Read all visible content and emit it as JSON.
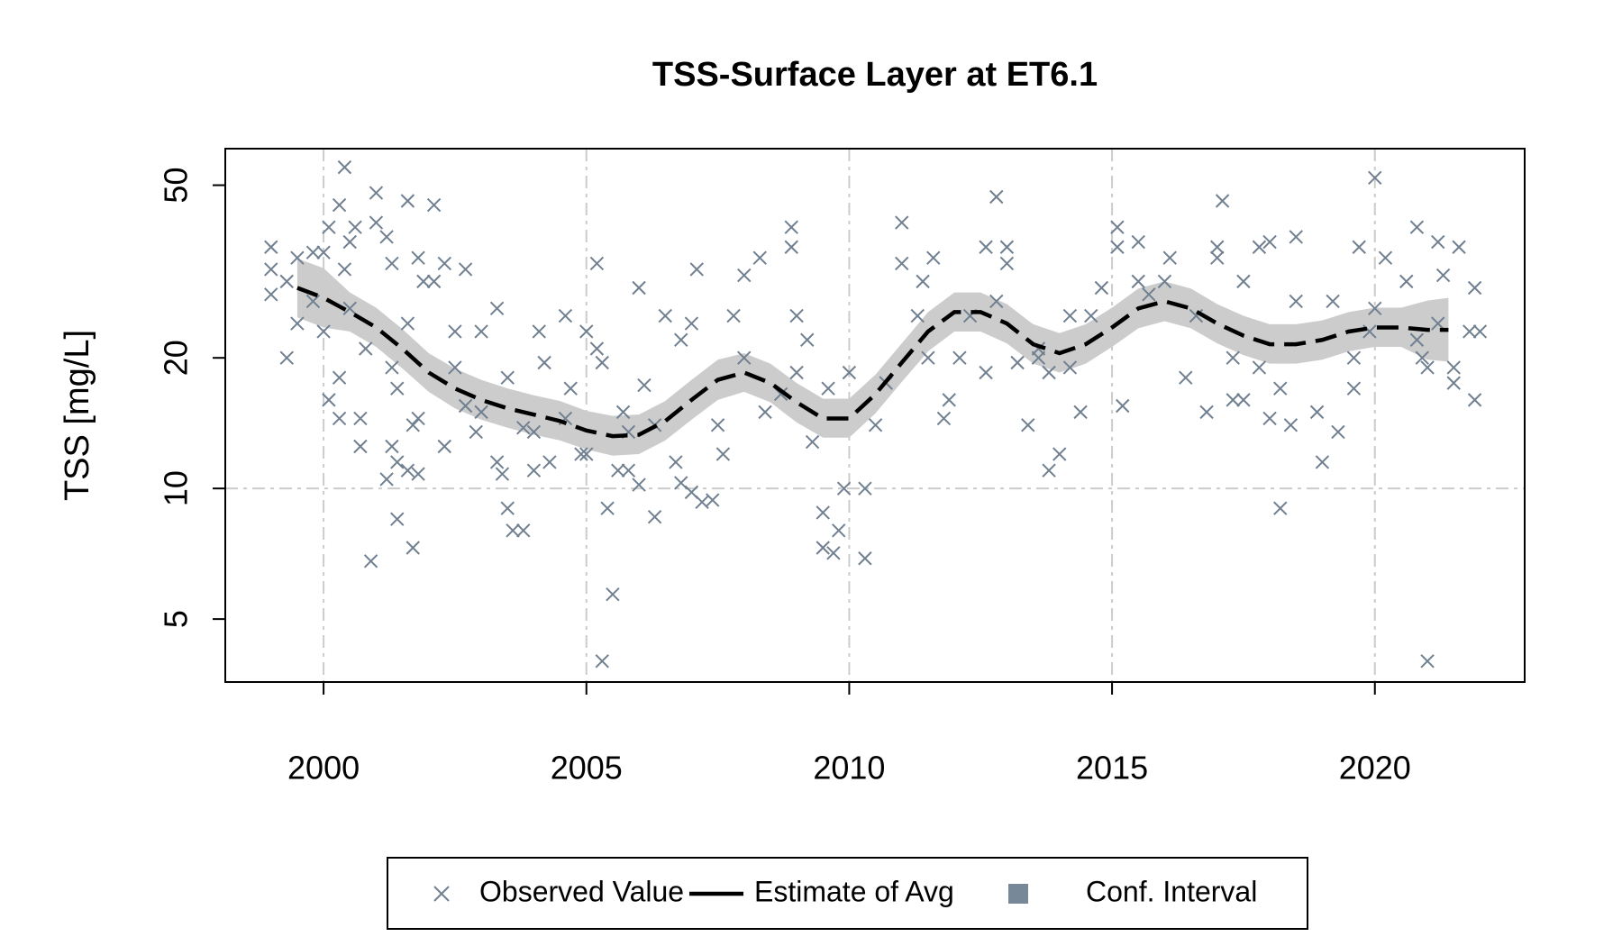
{
  "chart_data": {
    "type": "scatter",
    "title": "TSS-Surface Layer at ET6.1",
    "y_label": "TSS [mg/L]",
    "xlim": [
      1998.13,
      2022.85
    ],
    "ylim": [
      3.58,
      60.7
    ],
    "xticks": [
      2000,
      2005,
      2010,
      2015,
      2020
    ],
    "yticks": [
      5,
      10,
      20,
      50
    ],
    "y_log": true,
    "grid_x": true,
    "grid_y": [
      10
    ],
    "legend_position": "bottom",
    "series": [
      {
        "name": "Observed Value",
        "type": "scatter",
        "color": "#708090",
        "x": [
          1999.0,
          1999.0,
          1999.0,
          1999.3,
          1999.3,
          1999.5,
          1999.5,
          1999.8,
          1999.8,
          2000.0,
          2000.0,
          2000.1,
          2000.1,
          2000.3,
          2000.3,
          2000.3,
          2000.4,
          2000.4,
          2000.5,
          2000.5,
          2000.6,
          2000.7,
          2000.7,
          2000.8,
          2000.9,
          2001.0,
          2001.0,
          2001.2,
          2001.2,
          2001.3,
          2001.3,
          2001.3,
          2001.4,
          2001.4,
          2001.4,
          2001.6,
          2001.6,
          2001.6,
          2001.7,
          2001.7,
          2001.8,
          2001.8,
          2001.8,
          2001.9,
          2002.1,
          2002.1,
          2002.3,
          2002.3,
          2002.5,
          2002.5,
          2002.7,
          2002.7,
          2002.9,
          2003.0,
          2003.0,
          2003.3,
          2003.3,
          2003.4,
          2003.5,
          2003.5,
          2003.6,
          2003.8,
          2003.8,
          2004.0,
          2004.0,
          2004.1,
          2004.2,
          2004.3,
          2004.6,
          2004.6,
          2004.7,
          2004.9,
          2005.0,
          2005.0,
          2005.2,
          2005.2,
          2005.3,
          2005.3,
          2005.4,
          2005.5,
          2005.6,
          2005.7,
          2005.8,
          2005.8,
          2006.0,
          2006.0,
          2006.1,
          2006.3,
          2006.3,
          2006.5,
          2006.7,
          2006.8,
          2006.8,
          2007.0,
          2007.0,
          2007.1,
          2007.2,
          2007.4,
          2007.5,
          2007.6,
          2007.8,
          2008.0,
          2008.0,
          2008.3,
          2008.4,
          2008.7,
          2008.9,
          2008.9,
          2009.0,
          2009.0,
          2009.2,
          2009.3,
          2009.5,
          2009.5,
          2009.6,
          2009.7,
          2009.8,
          2009.9,
          2010.0,
          2010.3,
          2010.3,
          2010.5,
          2010.7,
          2011.0,
          2011.0,
          2011.3,
          2011.4,
          2011.5,
          2011.6,
          2011.8,
          2011.9,
          2012.1,
          2012.3,
          2012.6,
          2012.6,
          2012.8,
          2012.8,
          2013.0,
          2013.0,
          2013.2,
          2013.4,
          2013.6,
          2013.6,
          2013.8,
          2013.8,
          2014.0,
          2014.2,
          2014.2,
          2014.4,
          2014.6,
          2014.8,
          2015.1,
          2015.1,
          2015.2,
          2015.5,
          2015.5,
          2015.7,
          2016.0,
          2016.1,
          2016.4,
          2016.6,
          2016.8,
          2017.0,
          2017.0,
          2017.1,
          2017.3,
          2017.3,
          2017.5,
          2017.5,
          2017.8,
          2017.8,
          2018.0,
          2018.0,
          2018.2,
          2018.2,
          2018.4,
          2018.5,
          2018.5,
          2018.9,
          2019.0,
          2019.2,
          2019.3,
          2019.6,
          2019.6,
          2019.7,
          2019.9,
          2020.0,
          2020.0,
          2020.2,
          2020.6,
          2020.8,
          2020.8,
          2020.9,
          2021.0,
          2021.0,
          2021.2,
          2021.2,
          2021.3,
          2021.5,
          2021.5,
          2021.6,
          2021.8,
          2021.9,
          2021.9,
          2022.0
        ],
        "values": [
          36,
          28,
          32,
          20,
          30,
          24,
          34,
          27,
          35,
          23,
          35,
          40,
          16,
          45,
          18,
          14.5,
          55,
          32,
          37,
          26,
          40,
          12.5,
          14.5,
          21,
          6.8,
          48,
          41,
          38,
          10.5,
          33,
          19,
          12.5,
          17,
          8.5,
          11.5,
          46,
          24,
          11,
          14,
          7.3,
          14.5,
          34,
          10.8,
          30,
          45,
          30,
          33,
          12.5,
          19,
          23,
          15.5,
          32,
          13.5,
          23,
          15,
          11.5,
          26,
          10.8,
          18,
          9,
          8,
          13.8,
          8,
          11,
          13.5,
          23,
          19.5,
          11.5,
          25,
          14.5,
          17,
          12,
          23,
          12,
          33,
          21,
          19.5,
          4,
          9,
          5.7,
          11,
          15,
          11,
          13.5,
          10.2,
          29,
          17.3,
          8.6,
          14,
          25,
          11.5,
          22,
          10.3,
          9.8,
          24,
          32,
          9.3,
          9.4,
          14,
          12,
          25,
          20,
          31,
          34,
          15,
          16.5,
          40,
          36,
          25,
          18.5,
          22,
          12.8,
          7.3,
          8.8,
          17,
          7.1,
          8,
          10,
          18.5,
          6.9,
          10,
          14,
          17.5,
          41,
          33,
          25,
          30,
          20,
          34,
          14.5,
          16,
          20,
          25,
          36,
          18.5,
          47,
          27,
          33,
          36,
          19.5,
          14,
          20,
          21,
          11,
          18.5,
          12,
          25,
          19,
          15,
          25,
          29,
          40,
          36,
          15.5,
          30,
          37,
          28,
          30,
          34,
          18,
          25,
          15,
          36,
          34,
          46,
          20,
          16,
          30,
          16,
          36,
          19,
          37,
          14.5,
          9,
          17,
          14,
          38,
          27,
          15,
          11.5,
          27,
          13.5,
          20,
          17,
          36,
          23,
          52,
          26,
          34,
          30,
          40,
          22,
          20,
          19,
          4,
          37,
          24,
          31,
          19,
          17.5,
          36,
          23,
          16,
          29,
          23
        ]
      },
      {
        "name": "Estimate of Avg",
        "type": "line",
        "color": "#000000",
        "x": [
          1999.5,
          2000,
          2000.5,
          2001,
          2001.5,
          2002,
          2002.5,
          2003,
          2003.5,
          2004,
          2004.5,
          2005,
          2005.5,
          2006,
          2006.5,
          2007,
          2007.5,
          2008,
          2008.5,
          2009,
          2009.5,
          2010,
          2010.5,
          2011,
          2011.5,
          2012,
          2012.5,
          2013,
          2013.5,
          2014,
          2014.5,
          2015,
          2015.5,
          2016,
          2016.5,
          2017,
          2017.5,
          2018,
          2018.5,
          2019,
          2019.5,
          2020,
          2020.5,
          2021,
          2021.4
        ],
        "values": [
          29,
          27.5,
          25.5,
          23.5,
          21,
          18.5,
          17,
          16,
          15.3,
          14.8,
          14.3,
          13.6,
          13.2,
          13.3,
          14.3,
          16,
          17.8,
          18.5,
          17.5,
          15.8,
          14.5,
          14.5,
          16.5,
          19.5,
          23,
          25.5,
          25.5,
          24,
          21.5,
          20.5,
          21.5,
          23.5,
          26,
          27,
          26,
          24,
          22.5,
          21.5,
          21.5,
          22,
          23,
          23.5,
          23.5,
          23.2,
          23.2
        ]
      },
      {
        "name": "Conf. Interval",
        "type": "band",
        "color": "#cccccc",
        "legend_color": "#778899",
        "x": [
          1999.5,
          2000,
          2000.5,
          2001,
          2001.5,
          2002,
          2002.5,
          2003,
          2003.5,
          2004,
          2004.5,
          2005,
          2005.5,
          2006,
          2006.5,
          2007,
          2007.5,
          2008,
          2008.5,
          2009,
          2009.5,
          2010,
          2010.5,
          2011,
          2011.5,
          2012,
          2012.5,
          2013,
          2013.5,
          2014,
          2014.5,
          2015,
          2015.5,
          2016,
          2016.5,
          2017,
          2017.5,
          2018,
          2018.5,
          2019,
          2019.5,
          2020,
          2020.5,
          2021,
          2021.4
        ],
        "upper": [
          33.9,
          32.2,
          28.3,
          26.1,
          23.3,
          20.5,
          18.9,
          17.8,
          17.0,
          16.4,
          15.9,
          15.1,
          14.7,
          14.8,
          15.9,
          17.8,
          19.8,
          20.5,
          19.4,
          17.5,
          16.1,
          16.1,
          18.3,
          21.6,
          25.5,
          28.3,
          28.3,
          26.6,
          23.9,
          22.8,
          23.9,
          26.1,
          28.9,
          30.0,
          28.9,
          26.6,
          25.0,
          23.9,
          23.9,
          24.4,
          25.5,
          26.1,
          26.1,
          27.1,
          27.5
        ],
        "lower": [
          24.8,
          23.5,
          23.0,
          21.2,
          18.9,
          16.7,
          15.3,
          14.4,
          13.8,
          13.3,
          12.9,
          12.3,
          11.9,
          12.0,
          12.9,
          14.4,
          16.0,
          16.7,
          15.8,
          14.2,
          13.1,
          13.1,
          14.9,
          17.6,
          20.7,
          23.0,
          23.0,
          21.6,
          19.4,
          18.5,
          19.4,
          21.2,
          23.4,
          24.3,
          23.4,
          21.6,
          20.3,
          19.4,
          19.4,
          19.8,
          20.7,
          21.2,
          21.2,
          19.8,
          19.6
        ]
      }
    ]
  }
}
